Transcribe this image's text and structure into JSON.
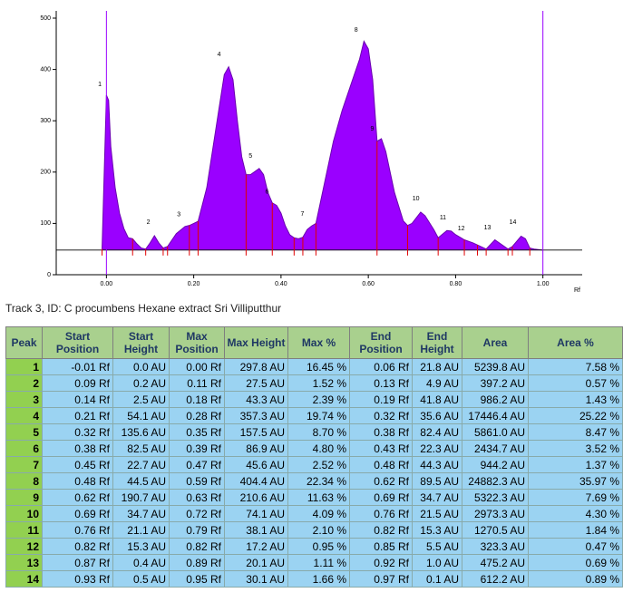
{
  "chart_data": {
    "type": "area",
    "color": "#9a00ff",
    "line_color": "#6a00b0",
    "xlim": [
      -0.115,
      1.09
    ],
    "ylim": [
      0,
      500
    ],
    "xticks": [
      {
        "value": 0,
        "label": "0.00"
      },
      {
        "value": 0.2,
        "label": "0.20"
      },
      {
        "value": 0.4,
        "label": "0.40"
      },
      {
        "value": 0.6,
        "label": "0.60"
      },
      {
        "value": 0.8,
        "label": "0.80"
      },
      {
        "value": 1,
        "label": "1.00"
      }
    ],
    "yticks": [
      0,
      100,
      200,
      300,
      400,
      500
    ],
    "x_label": "Rf",
    "baseline": 48,
    "markers": [
      0,
      1
    ],
    "marker_color": "#9a00ff",
    "boundaries": [
      -0.01,
      0.06,
      0.09,
      0.13,
      0.14,
      0.19,
      0.21,
      0.32,
      0.38,
      0.43,
      0.45,
      0.48,
      0.62,
      0.69,
      0.76,
      0.82,
      0.85,
      0.87,
      0.92,
      0.93,
      0.97
    ],
    "boundary_color": "#e00000",
    "x": [
      -0.01,
      0.0,
      0.005,
      0.01,
      0.02,
      0.03,
      0.04,
      0.05,
      0.06,
      0.07,
      0.08,
      0.09,
      0.1,
      0.11,
      0.12,
      0.13,
      0.14,
      0.16,
      0.18,
      0.19,
      0.2,
      0.21,
      0.23,
      0.25,
      0.27,
      0.28,
      0.29,
      0.3,
      0.31,
      0.32,
      0.33,
      0.35,
      0.36,
      0.37,
      0.38,
      0.39,
      0.4,
      0.41,
      0.42,
      0.43,
      0.44,
      0.45,
      0.46,
      0.47,
      0.48,
      0.5,
      0.52,
      0.54,
      0.56,
      0.58,
      0.59,
      0.6,
      0.61,
      0.62,
      0.63,
      0.64,
      0.66,
      0.68,
      0.69,
      0.7,
      0.72,
      0.73,
      0.75,
      0.76,
      0.78,
      0.79,
      0.8,
      0.82,
      0.84,
      0.86,
      0.87,
      0.89,
      0.9,
      0.92,
      0.93,
      0.95,
      0.96,
      0.97,
      0.98,
      1.0
    ],
    "values": [
      50,
      350,
      340,
      250,
      170,
      120,
      90,
      72,
      70,
      60,
      52,
      50,
      62,
      76,
      62,
      52,
      55,
      80,
      94,
      96,
      100,
      104,
      170,
      280,
      390,
      405,
      380,
      300,
      230,
      195,
      195,
      207,
      195,
      160,
      140,
      135,
      120,
      95,
      78,
      72,
      70,
      73,
      88,
      95,
      100,
      180,
      260,
      320,
      370,
      420,
      455,
      440,
      380,
      260,
      265,
      240,
      160,
      105,
      96,
      100,
      122,
      115,
      88,
      72,
      86,
      85,
      78,
      68,
      62,
      54,
      50,
      68,
      62,
      50,
      55,
      75,
      70,
      52,
      50,
      48
    ],
    "annotations": [
      {
        "text": "1",
        "x": -0.015,
        "y": 371
      },
      {
        "text": "2",
        "x": 0.096,
        "y": 102
      },
      {
        "text": "3",
        "x": 0.166,
        "y": 117
      },
      {
        "text": "4",
        "x": 0.258,
        "y": 429
      },
      {
        "text": "5",
        "x": 0.33,
        "y": 231
      },
      {
        "text": "6",
        "x": 0.368,
        "y": 161
      },
      {
        "text": "7",
        "x": 0.449,
        "y": 118
      },
      {
        "text": "8",
        "x": 0.572,
        "y": 477
      },
      {
        "text": "9",
        "x": 0.609,
        "y": 284
      },
      {
        "text": "10",
        "x": 0.709,
        "y": 148
      },
      {
        "text": "11",
        "x": 0.771,
        "y": 111
      },
      {
        "text": "12",
        "x": 0.813,
        "y": 90
      },
      {
        "text": "13",
        "x": 0.873,
        "y": 92
      },
      {
        "text": "14",
        "x": 0.931,
        "y": 102
      }
    ]
  },
  "caption": "Track 3, ID: C procumbens Hexane extract Sri Villiputthur",
  "table": {
    "header": [
      "Peak",
      "Start Position",
      "Start Height",
      "Max Position",
      "Max Height",
      "Max %",
      "End Position",
      "End Height",
      "Area",
      "Area %"
    ],
    "rows": [
      [
        "1",
        "-0.01 Rf",
        "0.0 AU",
        "0.00 Rf",
        "297.8 AU",
        "16.45 %",
        "0.06 Rf",
        "21.8 AU",
        "5239.8 AU",
        "7.58 %"
      ],
      [
        "2",
        "0.09 Rf",
        "0.2 AU",
        "0.11 Rf",
        "27.5 AU",
        "1.52 %",
        "0.13 Rf",
        "4.9 AU",
        "397.2 AU",
        "0.57 %"
      ],
      [
        "3",
        "0.14 Rf",
        "2.5 AU",
        "0.18 Rf",
        "43.3 AU",
        "2.39 %",
        "0.19 Rf",
        "41.8 AU",
        "986.2 AU",
        "1.43 %"
      ],
      [
        "4",
        "0.21 Rf",
        "54.1 AU",
        "0.28 Rf",
        "357.3 AU",
        "19.74 %",
        "0.32 Rf",
        "35.6 AU",
        "17446.4 AU",
        "25.22 %"
      ],
      [
        "5",
        "0.32 Rf",
        "135.6 AU",
        "0.35 Rf",
        "157.5 AU",
        "8.70 %",
        "0.38 Rf",
        "82.4 AU",
        "5861.0 AU",
        "8.47 %"
      ],
      [
        "6",
        "0.38 Rf",
        "82.5 AU",
        "0.39 Rf",
        "86.9 AU",
        "4.80 %",
        "0.43 Rf",
        "22.3 AU",
        "2434.7 AU",
        "3.52 %"
      ],
      [
        "7",
        "0.45 Rf",
        "22.7 AU",
        "0.47 Rf",
        "45.6 AU",
        "2.52 %",
        "0.48 Rf",
        "44.3 AU",
        "944.2 AU",
        "1.37 %"
      ],
      [
        "8",
        "0.48 Rf",
        "44.5 AU",
        "0.59 Rf",
        "404.4 AU",
        "22.34 %",
        "0.62 Rf",
        "89.5 AU",
        "24882.3 AU",
        "35.97 %"
      ],
      [
        "9",
        "0.62 Rf",
        "190.7 AU",
        "0.63 Rf",
        "210.6 AU",
        "11.63 %",
        "0.69 Rf",
        "34.7 AU",
        "5322.3 AU",
        "7.69 %"
      ],
      [
        "10",
        "0.69 Rf",
        "34.7 AU",
        "0.72 Rf",
        "74.1 AU",
        "4.09 %",
        "0.76 Rf",
        "21.5 AU",
        "2973.3 AU",
        "4.30 %"
      ],
      [
        "11",
        "0.76 Rf",
        "21.1 AU",
        "0.79 Rf",
        "38.1 AU",
        "2.10 %",
        "0.82 Rf",
        "15.3 AU",
        "1270.5 AU",
        "1.84 %"
      ],
      [
        "12",
        "0.82 Rf",
        "15.3 AU",
        "0.82 Rf",
        "17.2 AU",
        "0.95 %",
        "0.85 Rf",
        "5.5 AU",
        "323.3 AU",
        "0.47 %"
      ],
      [
        "13",
        "0.87 Rf",
        "0.4 AU",
        "0.89 Rf",
        "20.1 AU",
        "1.11 %",
        "0.92 Rf",
        "1.0 AU",
        "475.2 AU",
        "0.69 %"
      ],
      [
        "14",
        "0.93 Rf",
        "0.5 AU",
        "0.95 Rf",
        "30.1 AU",
        "1.66 %",
        "0.97 Rf",
        "0.1 AU",
        "612.2 AU",
        "0.89 %"
      ]
    ]
  }
}
